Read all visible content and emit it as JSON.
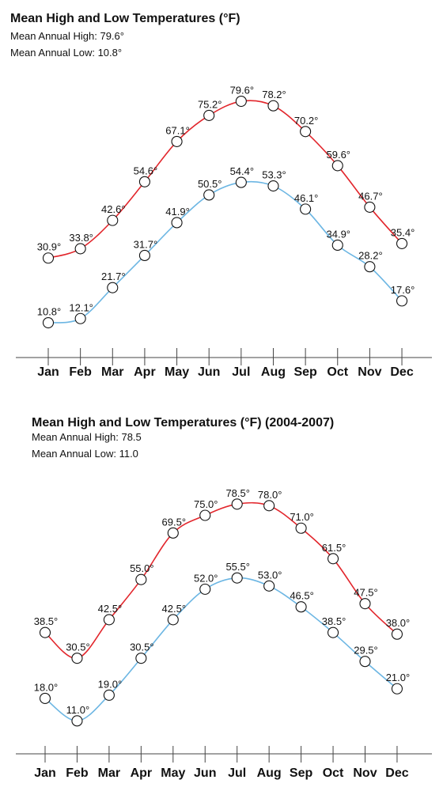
{
  "chart_data": [
    {
      "type": "line",
      "title": "Mean High and Low Temperatures (°F)",
      "subtitle_lines": [
        "Mean Annual High: 79.6°",
        "Mean Annual Low: 10.8°"
      ],
      "categories": [
        "Jan",
        "Feb",
        "Mar",
        "Apr",
        "May",
        "Jun",
        "Jul",
        "Aug",
        "Sep",
        "Oct",
        "Nov",
        "Dec"
      ],
      "series": [
        {
          "values": [
            30.9,
            33.8,
            42.6,
            54.6,
            67.1,
            75.2,
            79.6,
            78.2,
            70.2,
            59.6,
            46.7,
            35.4
          ],
          "labels": [
            "30.9°",
            "33.8°",
            "42.6°",
            "54.6°",
            "67.1°",
            "75.2°",
            "79.6°",
            "78.2°",
            "70.2°",
            "59.6°",
            "46.7°",
            "35.4°"
          ],
          "color": "#e2262c"
        },
        {
          "values": [
            10.8,
            12.1,
            21.7,
            31.7,
            41.9,
            50.5,
            54.4,
            53.3,
            46.1,
            34.9,
            28.2,
            17.6
          ],
          "labels": [
            "10.8°",
            "12.1°",
            "21.7°",
            "31.7°",
            "41.9°",
            "50.5°",
            "54.4°",
            "53.3°",
            "46.1°",
            "34.9°",
            "28.2°",
            "17.6°"
          ],
          "color": "#6cb6e3"
        }
      ],
      "ylim": [
        0,
        80
      ],
      "grid": false,
      "legend": "none"
    },
    {
      "type": "line",
      "title": "Mean High and Low Temperatures (°F) (2004-2007)",
      "subtitle_lines": [
        "Mean Annual High: 78.5",
        "Mean Annual Low: 11.0"
      ],
      "categories": [
        "Jan",
        "Feb",
        "Mar",
        "Apr",
        "May",
        "Jun",
        "Jul",
        "Aug",
        "Sep",
        "Oct",
        "Nov",
        "Dec"
      ],
      "series": [
        {
          "values": [
            38.5,
            30.5,
            42.5,
            55.0,
            69.5,
            75.0,
            78.5,
            78.0,
            71.0,
            61.5,
            47.5,
            38.0
          ],
          "labels": [
            "38.5°",
            "30.5°",
            "42.5°",
            "55.0°",
            "69.5°",
            "75.0°",
            "78.5°",
            "78.0°",
            "71.0°",
            "61.5°",
            "47.5°",
            "38.0°"
          ],
          "color": "#e2262c"
        },
        {
          "values": [
            18.0,
            11.0,
            19.0,
            30.5,
            42.5,
            52.0,
            55.5,
            53.0,
            46.5,
            38.5,
            29.5,
            21.0
          ],
          "labels": [
            "18.0°",
            "11.0°",
            "19.0°",
            "30.5°",
            "42.5°",
            "52.0°",
            "55.5°",
            "53.0°",
            "46.5°",
            "38.5°",
            "29.5°",
            "21.0°"
          ],
          "color": "#6cb6e3"
        }
      ],
      "ylim": [
        0,
        80
      ],
      "grid": false,
      "legend": "none"
    }
  ]
}
